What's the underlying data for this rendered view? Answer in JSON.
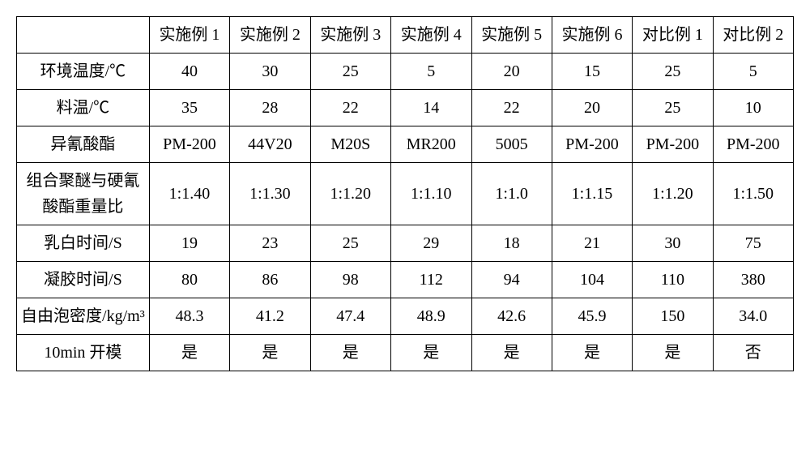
{
  "type": "table",
  "background_color": "#ffffff",
  "border_color": "#000000",
  "font_family": "SimSun",
  "font_size": 20,
  "cell_align": "center",
  "row_label_width": 165,
  "data_col_width": 100,
  "columns": [
    "",
    "实施例 1",
    "实施例 2",
    "实施例 3",
    "实施例 4",
    "实施例 5",
    "实施例 6",
    "对比例 1",
    "对比例 2"
  ],
  "rows": [
    {
      "label": "环境温度/℃",
      "cells": [
        "40",
        "30",
        "25",
        "5",
        "20",
        "15",
        "25",
        "5"
      ]
    },
    {
      "label": "料温/℃",
      "cells": [
        "35",
        "28",
        "22",
        "14",
        "22",
        "20",
        "25",
        "10"
      ]
    },
    {
      "label": "异氰酸酯",
      "cells": [
        "PM-200",
        "44V20",
        "M20S",
        "MR200",
        "5005",
        "PM-200",
        "PM-200",
        "PM-200"
      ]
    },
    {
      "label": "组合聚醚与硬氰酸酯重量比",
      "cells": [
        "1:1.40",
        "1:1.30",
        "1:1.20",
        "1:1.10",
        "1:1.0",
        "1:1.15",
        "1:1.20",
        "1:1.50"
      ]
    },
    {
      "label": "乳白时间/S",
      "cells": [
        "19",
        "23",
        "25",
        "29",
        "18",
        "21",
        "30",
        "75"
      ]
    },
    {
      "label": "凝胶时间/S",
      "cells": [
        "80",
        "86",
        "98",
        "112",
        "94",
        "104",
        "110",
        "380"
      ]
    },
    {
      "label": "自由泡密度/kg/m³",
      "cells": [
        "48.3",
        "41.2",
        "47.4",
        "48.9",
        "42.6",
        "45.9",
        "150",
        "34.0"
      ]
    },
    {
      "label": "10min 开模",
      "cells": [
        "是",
        "是",
        "是",
        "是",
        "是",
        "是",
        "是",
        "否"
      ]
    }
  ]
}
